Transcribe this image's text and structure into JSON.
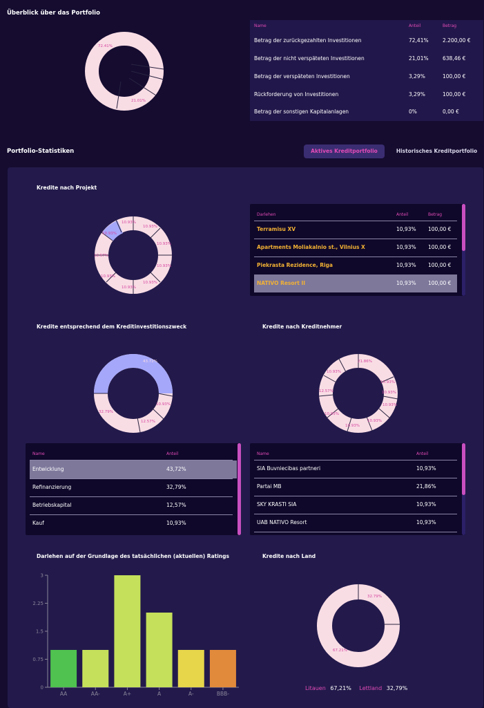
{
  "overview": {
    "title": "Überblick über das Portfolio",
    "table": {
      "headers": [
        "Name",
        "Anteil",
        "Betrag"
      ],
      "rows": [
        [
          "Betrag der zurückgezahlten Investitionen",
          "72,41%",
          "2.200,00 €"
        ],
        [
          "Betrag der nicht verspäteten Investitionen",
          "21,01%",
          "638,46 €"
        ],
        [
          "Betrag der verspäteten Investitionen",
          "3,29%",
          "100,00 €"
        ],
        [
          "Rückforderung von Investitionen",
          "3,29%",
          "100,00 €"
        ],
        [
          "Betrag der sonstigen Kapitalanlagen",
          "0%",
          "0,00 €"
        ]
      ]
    },
    "donut": {
      "labels": [
        "72.41%",
        "21.01%"
      ],
      "values": [
        72.41,
        21.01,
        3.29,
        3.29,
        0
      ]
    }
  },
  "stats": {
    "title": "Portfolio-Statistiken",
    "tab_active": "Aktives Kreditportfolio",
    "tab_history": "Historisches Kreditportfolio"
  },
  "by_project": {
    "title": "Kredite nach Projekt",
    "donut_labels": [
      "10.93%",
      "10.93%",
      "10.93%",
      "10.93%",
      "10.93%",
      "10.93%",
      "10.93%",
      "12.57%",
      "10.93%"
    ],
    "table": {
      "headers": [
        "Darlehen",
        "Anteil",
        "Betrag"
      ],
      "rows": [
        [
          "Terramisu XV",
          "10,93%",
          "100,00 €"
        ],
        [
          "Apartments Moliakalnio st., Vilnius X",
          "10,93%",
          "100,00 €"
        ],
        [
          "Piekrasta Rezidence, Riga",
          "10,93%",
          "100,00 €"
        ],
        [
          "NATIVO Resort II",
          "10,93%",
          "100,00 €"
        ]
      ]
    }
  },
  "by_purpose": {
    "title": "Kredite entsprechend dem Kreditinvestitionszweck",
    "donut_labels": [
      "43.72%",
      "10.93%",
      "12.57%",
      "32.79%"
    ],
    "table": {
      "headers": [
        "Name",
        "Anteil"
      ],
      "rows": [
        [
          "Entwicklung",
          "43,72%"
        ],
        [
          "Refinanzierung",
          "32,79%"
        ],
        [
          "Betriebskapital",
          "12,57%"
        ],
        [
          "Kauf",
          "10,93%"
        ]
      ]
    }
  },
  "by_borrower": {
    "title": "Kredite nach Kreditnehmer",
    "donut_labels": [
      "21.86%",
      "10.93%",
      "10.93%",
      "10.93%",
      "10.93%",
      "10.93%",
      "12.57%",
      "10.93%",
      "10.93%"
    ],
    "table": {
      "headers": [
        "Name",
        "Anteil"
      ],
      "rows": [
        [
          "SIA Buvniecibas partneri",
          "10,93%"
        ],
        [
          "Partai MB",
          "21,86%"
        ],
        [
          "SKY KRASTI SIA",
          "10,93%"
        ],
        [
          "UAB NATIVO Resort",
          "10,93%"
        ]
      ]
    }
  },
  "by_country": {
    "title": "Kredite nach Land",
    "donut_labels": [
      "32.79%",
      "67.21%"
    ],
    "legend": [
      {
        "name": "Litauen",
        "value": "67,21%"
      },
      {
        "name": "Lettland",
        "value": "32,79%"
      }
    ]
  },
  "chart_data": {
    "type": "bar",
    "title": "Darlehen auf der Grundlage des tatsächlichen (aktuellen) Ratings",
    "categories": [
      "AA",
      "AA-",
      "A+",
      "A",
      "A-",
      "BBB-"
    ],
    "values": [
      1,
      1,
      3,
      2,
      1,
      1
    ],
    "ylim": [
      0,
      3
    ],
    "yticks": [
      "0",
      "0.75",
      "1.5",
      "2.25",
      "3"
    ],
    "colors": [
      "#4fc24f",
      "#c5e05a",
      "#c5e05a",
      "#c5e05a",
      "#e7d64a",
      "#e28a3c"
    ]
  }
}
